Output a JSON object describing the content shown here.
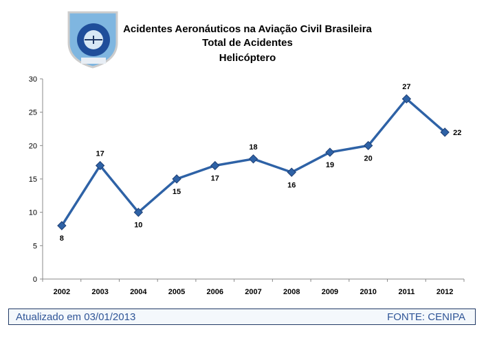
{
  "logo": {
    "text_top": "O HOMEM",
    "text_left": "O ELO",
    "text_right": "A MÁQUINA",
    "banner": "CENIPA"
  },
  "header": {
    "title": "Acidentes Aeronáuticos na Aviação Civil Brasileira",
    "subtitle1": "Total de Acidentes",
    "subtitle2": "Helicóptero"
  },
  "chart_data": {
    "type": "line",
    "title": "Acidentes Aeronáuticos na Aviação Civil Brasileira - Total de Acidentes - Helicóptero",
    "categories": [
      "2002",
      "2003",
      "2004",
      "2005",
      "2006",
      "2007",
      "2008",
      "2009",
      "2010",
      "2011",
      "2012"
    ],
    "series": [
      {
        "name": "Helicóptero",
        "values": [
          8,
          17,
          10,
          15,
          17,
          18,
          16,
          19,
          20,
          27,
          22
        ],
        "color": "#2e62a6"
      }
    ],
    "ylim": [
      0,
      30
    ],
    "yticks": [
      0,
      5,
      10,
      15,
      20,
      25,
      30
    ],
    "grid": false,
    "xlabel": "",
    "ylabel": ""
  },
  "footer": {
    "updated": "Atualizado em 03/01/2013",
    "source": "FONTE: CENIPA"
  }
}
